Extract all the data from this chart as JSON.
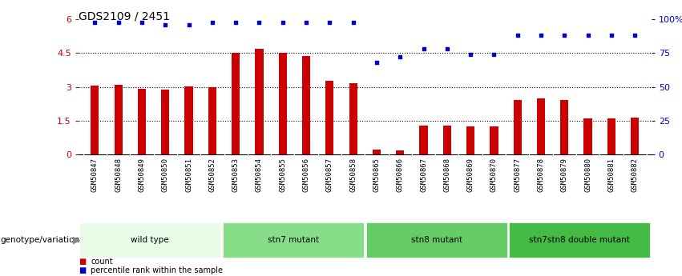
{
  "title": "GDS2109 / 2451",
  "samples": [
    "GSM50847",
    "GSM50848",
    "GSM50849",
    "GSM50850",
    "GSM50851",
    "GSM50852",
    "GSM50853",
    "GSM50854",
    "GSM50855",
    "GSM50856",
    "GSM50857",
    "GSM50858",
    "GSM50865",
    "GSM50866",
    "GSM50867",
    "GSM50868",
    "GSM50869",
    "GSM50870",
    "GSM50877",
    "GSM50878",
    "GSM50879",
    "GSM50880",
    "GSM50881",
    "GSM50882"
  ],
  "counts": [
    3.05,
    3.08,
    2.92,
    2.88,
    3.02,
    3.0,
    4.5,
    4.68,
    4.5,
    4.38,
    3.28,
    3.15,
    0.22,
    0.2,
    1.28,
    1.28,
    1.25,
    1.25,
    2.42,
    2.5,
    2.42,
    1.62,
    1.62,
    1.65
  ],
  "percentiles": [
    98,
    98,
    98,
    96,
    96,
    98,
    98,
    98,
    98,
    98,
    98,
    98,
    68,
    72,
    78,
    78,
    74,
    74,
    88,
    88,
    88,
    88,
    88,
    88
  ],
  "bar_color": "#cc0000",
  "dot_color": "#0000cc",
  "ylim_left": [
    0,
    6
  ],
  "ylim_right": [
    0,
    100
  ],
  "yticks_left": [
    0,
    1.5,
    3.0,
    4.5,
    6.0
  ],
  "ytick_labels_left": [
    "0",
    "1.5",
    "3",
    "4.5",
    "6"
  ],
  "yticks_right": [
    0,
    25,
    50,
    75,
    100
  ],
  "ytick_labels_right": [
    "0",
    "25",
    "50",
    "75",
    "100%"
  ],
  "groups": [
    {
      "label": "wild type",
      "start": 0,
      "end": 6,
      "color": "#e8fce8"
    },
    {
      "label": "stn7 mutant",
      "start": 6,
      "end": 12,
      "color": "#88dd88"
    },
    {
      "label": "stn8 mutant",
      "start": 12,
      "end": 18,
      "color": "#66cc66"
    },
    {
      "label": "stn7stn8 double mutant",
      "start": 18,
      "end": 24,
      "color": "#44bb44"
    }
  ],
  "genotype_label": "genotype/variation",
  "legend_count_label": "count",
  "legend_percentile_label": "percentile rank within the sample",
  "bg_color": "#ffffff",
  "xtick_bg_color": "#c8c8c8",
  "group_bg_color": "#b0b0b0",
  "dotted_line_color": "#000000",
  "bar_width": 0.35
}
